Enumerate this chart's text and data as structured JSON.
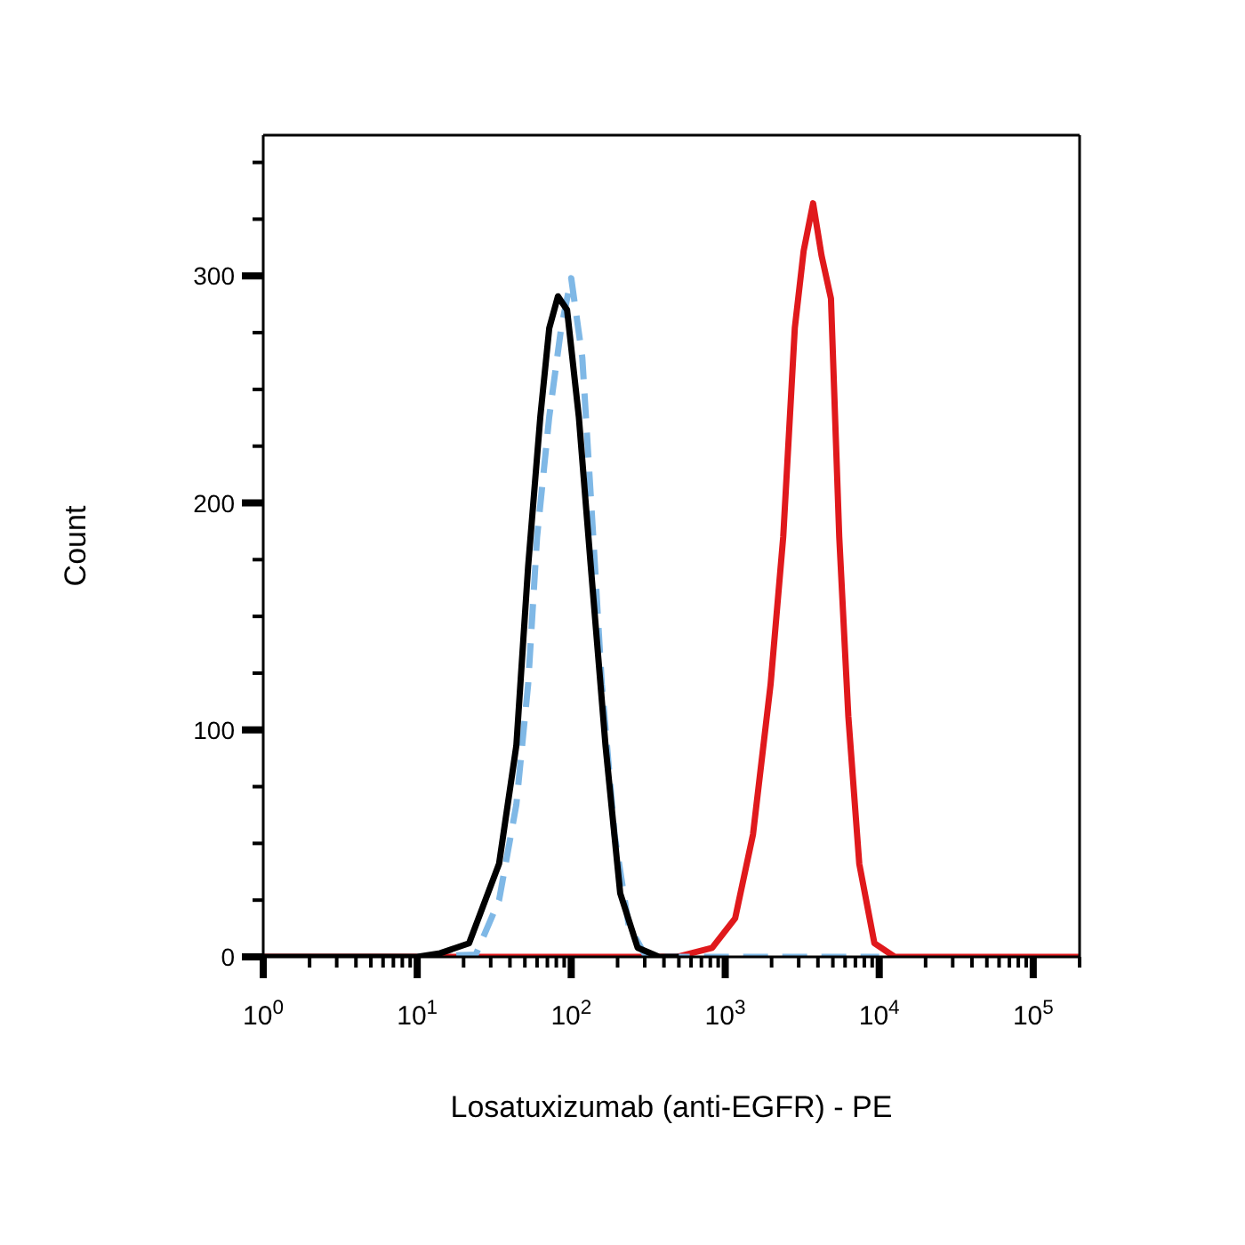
{
  "chart_data": {
    "type": "line",
    "xlabel": "Losatuxizumab (anti-EGFR) - PE",
    "ylabel": "Count",
    "log": "x",
    "marker": "none",
    "xlim": [
      1,
      200000
    ],
    "ylim": [
      0,
      362
    ],
    "xticks": [
      {
        "value": 1,
        "label": "10$^{0}$"
      },
      {
        "value": 2,
        "label": null
      },
      {
        "value": 3,
        "label": null
      },
      {
        "value": 4,
        "label": null
      },
      {
        "value": 5,
        "label": null
      },
      {
        "value": 6,
        "label": null
      },
      {
        "value": 7,
        "label": null
      },
      {
        "value": 8,
        "label": null
      },
      {
        "value": 9,
        "label": null
      },
      {
        "value": 10,
        "label": "10$^{1}$"
      },
      {
        "value": 20,
        "label": null
      },
      {
        "value": 30,
        "label": null
      },
      {
        "value": 40,
        "label": null
      },
      {
        "value": 50,
        "label": null
      },
      {
        "value": 60,
        "label": null
      },
      {
        "value": 70,
        "label": null
      },
      {
        "value": 80,
        "label": null
      },
      {
        "value": 90,
        "label": null
      },
      {
        "value": 100,
        "label": "10$^{2}$"
      },
      {
        "value": 200,
        "label": null
      },
      {
        "value": 300,
        "label": null
      },
      {
        "value": 400,
        "label": null
      },
      {
        "value": 500,
        "label": null
      },
      {
        "value": 600,
        "label": null
      },
      {
        "value": 700,
        "label": null
      },
      {
        "value": 800,
        "label": null
      },
      {
        "value": 900,
        "label": null
      },
      {
        "value": 1000,
        "label": "10$^{3}$"
      },
      {
        "value": 2000,
        "label": null
      },
      {
        "value": 3000,
        "label": null
      },
      {
        "value": 4000,
        "label": null
      },
      {
        "value": 5000,
        "label": null
      },
      {
        "value": 6000,
        "label": null
      },
      {
        "value": 7000,
        "label": null
      },
      {
        "value": 8000,
        "label": null
      },
      {
        "value": 9000,
        "label": null
      },
      {
        "value": 10000,
        "label": "10$^{4}$"
      },
      {
        "value": 20000,
        "label": null
      },
      {
        "value": 30000,
        "label": null
      },
      {
        "value": 40000,
        "label": null
      },
      {
        "value": 50000,
        "label": null
      },
      {
        "value": 60000,
        "label": null
      },
      {
        "value": 70000,
        "label": null
      },
      {
        "value": 80000,
        "label": null
      },
      {
        "value": 90000,
        "label": null
      },
      {
        "value": 100000,
        "label": "10$^{5}$"
      },
      {
        "value": 200000,
        "label": null
      }
    ],
    "yticks": [
      0,
      {
        "value": 25,
        "label": null
      },
      {
        "value": 50,
        "label": null
      },
      {
        "value": 75,
        "label": null
      },
      100,
      {
        "value": 125,
        "label": null
      },
      {
        "value": 150,
        "label": null
      },
      {
        "value": 175,
        "label": null
      },
      200,
      {
        "value": 225,
        "label": null
      },
      {
        "value": 250,
        "label": null
      },
      {
        "value": 275,
        "label": null
      },
      300,
      {
        "value": 325,
        "label": null
      },
      {
        "value": 350,
        "label": null
      }
    ],
    "series": [
      {
        "color": "#e0191c",
        "line_style": "solid",
        "x": [
          1,
          485,
          822,
          1160,
          1515,
          1970,
          2380,
          2830,
          3230,
          3720,
          4220,
          4860,
          5500,
          6300,
          7420,
          9300,
          12600,
          200000
        ],
        "values": [
          0,
          0,
          4,
          17,
          54,
          120,
          185,
          277,
          311,
          332,
          309,
          290,
          185,
          106,
          41,
          6,
          0,
          0
        ]
      },
      {
        "color": "#7fb8e6",
        "line_style": "dashed",
        "x": [
          10,
          24,
          34,
          44,
          52.5,
          60,
          72,
          86,
          100,
          118,
          139,
          158,
          191,
          236,
          297,
          400,
          10000
        ],
        "values": [
          0,
          1,
          25,
          67,
          120,
          185,
          238,
          277,
          299,
          264,
          185,
          120,
          54,
          14,
          1.6,
          0,
          0
        ]
      },
      {
        "color": "#000000",
        "line_style": "solid",
        "x": [
          1,
          10,
          14.1,
          21.7,
          34,
          44,
          52.5,
          63,
          72,
          82,
          94,
          112,
          134,
          167,
          208,
          270,
          372,
          500
        ],
        "values": [
          0,
          0,
          1.6,
          6,
          41,
          93,
          172,
          238,
          277,
          291,
          285,
          238,
          172,
          93,
          28,
          4,
          0,
          0
        ]
      }
    ]
  }
}
